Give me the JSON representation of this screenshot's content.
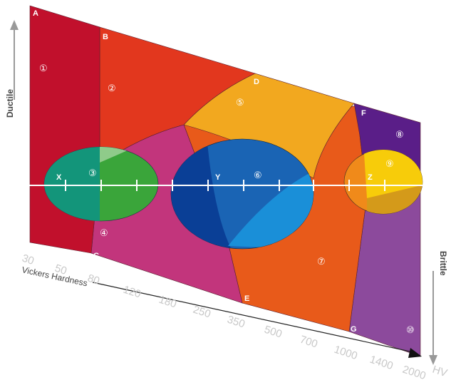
{
  "points": [
    "A",
    "B",
    "C",
    "D",
    "E",
    "F",
    "G"
  ],
  "centers": [
    "X",
    "Y",
    "Z"
  ],
  "regions": [
    "①",
    "②",
    "③",
    "④",
    "⑤",
    "⑥",
    "⑦",
    "⑧",
    "⑨",
    "⑩"
  ],
  "axes": {
    "ductile": "Ductile",
    "brittle": "Brittle",
    "x_title": "Vickers Hardness",
    "x_ticks": [
      "30",
      "50",
      "80",
      "120",
      "180",
      "250",
      "350",
      "500",
      "700",
      "1000",
      "1400",
      "2000"
    ],
    "x_unit": "HV"
  }
}
